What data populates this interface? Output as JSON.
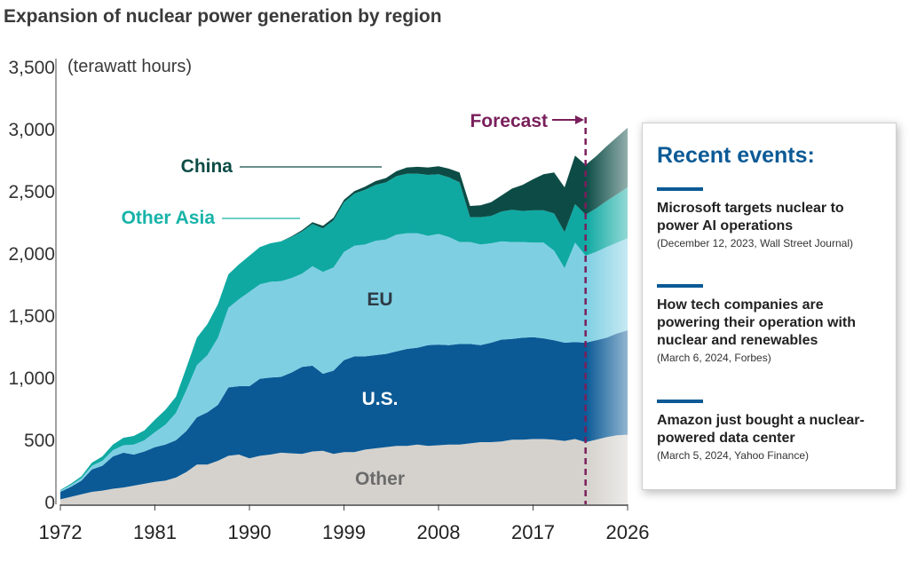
{
  "title": "Expansion of nuclear power generation by region",
  "unit_label": "(terawatt hours)",
  "forecast_label": "Forecast",
  "region_labels": {
    "china": "China",
    "other_asia": "Other Asia",
    "eu": "EU",
    "us": "U.S.",
    "other": "Other"
  },
  "colors": {
    "other": "#d5d2cd",
    "us": "#0b5a96",
    "eu": "#7fcfe3",
    "other_asia": "#0fa9a2",
    "china": "#0d4c46",
    "forecast_line": "#7a1f5b",
    "label_china": "#0d4c46",
    "label_other_asia": "#17b3a8",
    "label_eu": "#2d3a44",
    "label_us": "#ffffff",
    "label_other": "#6b6b6b"
  },
  "events_panel": {
    "title": "Recent events:",
    "events": [
      {
        "headline": "Microsoft targets nuclear to power AI operations",
        "source": "(December 12, 2023, Wall Street Journal)"
      },
      {
        "headline": "How tech companies are powering their operation with nuclear and renewables",
        "source": "(March 6, 2024, Forbes)"
      },
      {
        "headline": "Amazon just bought a nuclear-powered data center",
        "source": "(March 5, 2024, Yahoo Finance)"
      }
    ]
  },
  "chart_data": {
    "type": "area",
    "stacked": true,
    "title": "Expansion of nuclear power generation by region",
    "ylabel": "(terawatt hours)",
    "xlim": [
      1972,
      2026
    ],
    "ylim": [
      0,
      3500
    ],
    "x_ticks": [
      1972,
      1981,
      1990,
      1999,
      2008,
      2017,
      2026
    ],
    "y_ticks": [
      0,
      500,
      1000,
      1500,
      2000,
      2500,
      3000,
      3500
    ],
    "y_tick_labels": [
      "0",
      "500",
      "1,000",
      "1,500",
      "2,000",
      "2,500",
      "3,000",
      "3,500"
    ],
    "forecast_start": 2022,
    "x": [
      1972,
      1973,
      1974,
      1975,
      1976,
      1977,
      1978,
      1979,
      1980,
      1981,
      1982,
      1983,
      1984,
      1985,
      1986,
      1987,
      1988,
      1989,
      1990,
      1991,
      1992,
      1993,
      1994,
      1995,
      1996,
      1997,
      1998,
      1999,
      2000,
      2001,
      2002,
      2003,
      2004,
      2005,
      2006,
      2007,
      2008,
      2009,
      2010,
      2011,
      2012,
      2013,
      2014,
      2015,
      2016,
      2017,
      2018,
      2019,
      2020,
      2021,
      2022,
      2023,
      2024,
      2025,
      2026
    ],
    "series": [
      {
        "name": "Other",
        "values": [
          40,
          60,
          80,
          100,
          110,
          125,
          135,
          150,
          165,
          180,
          190,
          215,
          260,
          320,
          320,
          350,
          390,
          400,
          370,
          390,
          400,
          415,
          410,
          405,
          425,
          430,
          405,
          420,
          420,
          440,
          450,
          460,
          470,
          470,
          480,
          470,
          475,
          480,
          480,
          490,
          500,
          500,
          505,
          520,
          520,
          525,
          525,
          520,
          510,
          525,
          500,
          520,
          540,
          555,
          560
        ]
      },
      {
        "name": "U.S.",
        "values": [
          60,
          80,
          110,
          180,
          200,
          260,
          280,
          250,
          260,
          280,
          290,
          300,
          330,
          380,
          420,
          450,
          550,
          550,
          580,
          620,
          620,
          610,
          650,
          700,
          690,
          620,
          670,
          740,
          770,
          750,
          750,
          750,
          760,
          780,
          780,
          810,
          810,
          800,
          810,
          800,
          780,
          800,
          820,
          810,
          820,
          820,
          810,
          800,
          790,
          780,
          800,
          800,
          800,
          820,
          840
        ]
      },
      {
        "name": "EU",
        "values": [
          10,
          15,
          20,
          30,
          40,
          50,
          60,
          80,
          90,
          120,
          160,
          220,
          330,
          420,
          460,
          540,
          640,
          700,
          760,
          760,
          770,
          770,
          760,
          750,
          800,
          820,
          830,
          870,
          890,
          900,
          920,
          920,
          940,
          930,
          920,
          880,
          890,
          870,
          820,
          820,
          810,
          800,
          790,
          780,
          770,
          760,
          770,
          720,
          600,
          800,
          700,
          710,
          730,
          730,
          740
        ]
      },
      {
        "name": "Other Asia",
        "values": [
          5,
          10,
          15,
          25,
          35,
          45,
          60,
          70,
          80,
          100,
          120,
          130,
          180,
          220,
          250,
          270,
          270,
          280,
          290,
          300,
          310,
          320,
          330,
          340,
          340,
          350,
          380,
          400,
          420,
          440,
          450,
          460,
          470,
          480,
          480,
          490,
          480,
          480,
          480,
          200,
          220,
          220,
          240,
          260,
          250,
          260,
          260,
          300,
          290,
          310,
          330,
          350,
          370,
          390,
          410
        ]
      },
      {
        "name": "China",
        "values": [
          0,
          0,
          0,
          0,
          0,
          0,
          0,
          0,
          0,
          0,
          0,
          0,
          0,
          0,
          0,
          0,
          0,
          0,
          0,
          0,
          0,
          0,
          5,
          10,
          15,
          20,
          20,
          20,
          20,
          25,
          30,
          35,
          40,
          50,
          55,
          60,
          65,
          70,
          80,
          90,
          95,
          110,
          130,
          170,
          210,
          250,
          290,
          330,
          360,
          390,
          400,
          420,
          440,
          460,
          480
        ]
      }
    ]
  }
}
